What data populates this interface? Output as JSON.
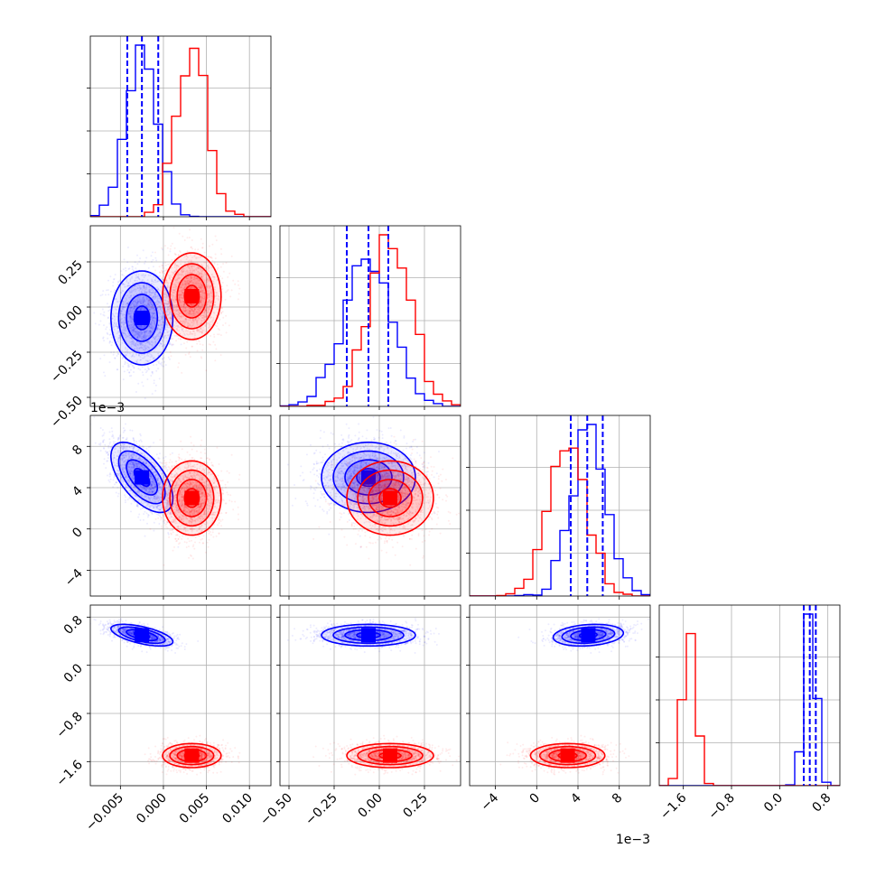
{
  "chart_data": {
    "type": "corner",
    "description_free": true,
    "series": [
      {
        "color": "#0000ff",
        "means": [
          -0.0025,
          -0.06,
          0.005,
          0.5
        ],
        "sds": [
          0.0018,
          0.13,
          0.0017,
          0.09
        ],
        "corr": [
          [
            1,
            0,
            -0.6,
            -0.6
          ],
          [
            0,
            1,
            0,
            0
          ],
          [
            -0.6,
            0,
            1,
            0.2
          ],
          [
            -0.6,
            0,
            0.2,
            1
          ]
        ],
        "quantiles": [
          [
            -0.0042,
            -0.0025,
            -0.0006
          ],
          [
            -0.18,
            -0.06,
            0.05
          ],
          [
            0.0033,
            0.0049,
            0.0064
          ],
          [
            0.4,
            0.5,
            0.6
          ]
        ]
      },
      {
        "color": "#ff0000",
        "means": [
          0.0033,
          0.06,
          0.003,
          -1.5
        ],
        "sds": [
          0.0017,
          0.12,
          0.0018,
          0.1
        ],
        "corr": [
          [
            1,
            0,
            0,
            0
          ],
          [
            0,
            1,
            0,
            0
          ],
          [
            0,
            0,
            1,
            0
          ],
          [
            0,
            0,
            0,
            1
          ]
        ],
        "quantiles": []
      }
    ],
    "axes": [
      {
        "range": [
          -0.0085,
          0.0125
        ],
        "ticks": [
          -0.005,
          0.0,
          0.005,
          0.01
        ],
        "tick_labels": [
          "−0.005",
          "0.000",
          "0.005",
          "0.010"
        ],
        "offset": ""
      },
      {
        "range": [
          -0.55,
          0.45
        ],
        "ticks": [
          -0.5,
          -0.25,
          0.0,
          0.25
        ],
        "tick_labels": [
          "−0.50",
          "−0.25",
          "0.00",
          "0.25"
        ],
        "offset": ""
      },
      {
        "range": [
          -0.0065,
          0.011
        ],
        "ticks": [
          -0.004,
          0.0,
          0.004,
          0.008
        ],
        "tick_labels": [
          "−4",
          "0",
          "4",
          "8"
        ],
        "offset": "1e−3"
      },
      {
        "range": [
          -2.0,
          1.0
        ],
        "ticks": [
          -1.6,
          -0.8,
          0.0,
          0.8
        ],
        "tick_labels": [
          "−1.6",
          "−0.8",
          "0.0",
          "0.8"
        ],
        "offset": ""
      }
    ],
    "hist_bins": 20,
    "contour_levels": [
      0.118,
      0.393,
      0.675,
      0.865
    ],
    "grid": true
  }
}
